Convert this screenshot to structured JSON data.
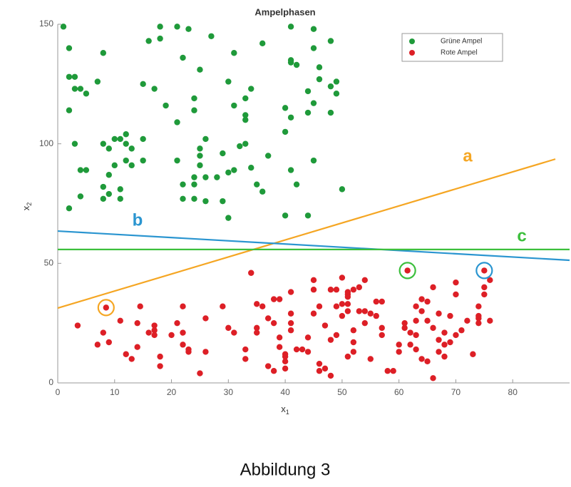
{
  "chart_data": {
    "type": "scatter",
    "title": "Ampelphasen",
    "xlabel": "x",
    "xlabel_sub": "1",
    "ylabel": "x",
    "ylabel_sub": "2",
    "xlim": [
      0,
      90
    ],
    "ylim": [
      0,
      150
    ],
    "xticks": [
      0,
      10,
      20,
      30,
      40,
      50,
      60,
      70,
      80
    ],
    "yticks": [
      0,
      50,
      100,
      150
    ],
    "legend": "upper right",
    "series": [
      {
        "name": "Grüne Ampel",
        "color": "#1f9a3a",
        "x": [
          1,
          2,
          2,
          3,
          2,
          3,
          4,
          5,
          3,
          4,
          5,
          2,
          4,
          7,
          8,
          8,
          9,
          8,
          9,
          8,
          9,
          10,
          11,
          12,
          12,
          13,
          12,
          10,
          11,
          11,
          13,
          15,
          15,
          15,
          17,
          16,
          18,
          18,
          21,
          23,
          22,
          25,
          19,
          21,
          21,
          22,
          22,
          24,
          24,
          24,
          24,
          24,
          25,
          25,
          25,
          26,
          26,
          26,
          27,
          28,
          29,
          29,
          30,
          30,
          30,
          31,
          31,
          31,
          32,
          33,
          33,
          33,
          34,
          33,
          34,
          35,
          36,
          36,
          37,
          40,
          40,
          40,
          41,
          41,
          41,
          41,
          41,
          42,
          42,
          44,
          44,
          44,
          45,
          45,
          45,
          45,
          46,
          46,
          48,
          48,
          48,
          49,
          49,
          50
        ],
        "y": [
          149,
          140,
          128,
          128,
          114,
          123,
          123,
          121,
          100,
          89,
          89,
          73,
          78,
          126,
          138,
          82,
          87,
          77,
          79,
          100,
          98,
          102,
          102,
          104,
          100,
          98,
          93,
          91,
          81,
          77,
          91,
          93,
          102,
          125,
          123,
          143,
          144,
          149,
          149,
          148,
          136,
          131,
          116,
          109,
          93,
          83,
          77,
          83,
          77,
          86,
          119,
          114,
          98,
          95,
          91,
          102,
          86,
          76,
          145,
          86,
          76,
          96,
          88,
          69,
          126,
          116,
          89,
          138,
          99,
          119,
          112,
          110,
          123,
          100,
          90,
          83,
          80,
          142,
          95,
          115,
          105,
          70,
          149,
          135,
          134,
          111,
          89,
          83,
          133,
          122,
          113,
          70,
          148,
          140,
          117,
          93,
          127,
          132,
          143,
          113,
          124,
          126,
          121,
          81
        ]
      },
      {
        "name": "Rote Ampel",
        "color": "#dd1f26",
        "x": [
          3.5,
          7,
          8.5,
          8,
          9,
          11,
          12,
          13,
          14,
          14,
          14.5,
          16,
          17,
          17,
          17,
          18,
          18,
          20,
          21,
          22,
          22,
          22,
          23,
          23,
          25,
          26,
          26,
          29,
          30,
          31,
          33,
          33,
          34,
          35,
          35,
          35,
          36,
          37,
          37,
          38,
          38,
          39,
          38,
          39,
          39,
          40,
          40,
          40,
          40,
          41,
          41,
          41,
          41,
          42,
          43,
          44,
          44,
          45,
          45,
          45,
          46,
          46,
          46,
          47,
          47,
          48,
          48,
          48,
          49,
          49,
          49,
          50,
          50,
          50,
          51,
          51,
          51,
          51,
          51,
          51,
          52,
          52,
          52,
          52,
          53,
          53,
          54,
          54,
          54,
          55,
          55,
          56,
          56,
          57,
          57,
          57,
          58,
          59,
          60,
          60,
          61,
          61,
          61.5,
          62,
          62,
          63,
          63,
          63,
          63,
          64,
          64,
          64,
          65,
          65,
          65,
          66,
          66,
          66,
          67,
          67,
          67,
          68,
          68,
          68,
          69,
          69,
          70,
          70,
          70,
          71,
          72,
          73,
          74,
          74,
          74,
          74,
          75,
          75,
          75,
          76,
          76
        ],
        "y": [
          24,
          16,
          31.5,
          21,
          17,
          26,
          12,
          10,
          15,
          25,
          32,
          21,
          22,
          24,
          20,
          7,
          11,
          20,
          25,
          16,
          21,
          32,
          14,
          13,
          4,
          27,
          13,
          32,
          23,
          21,
          10,
          14,
          46,
          33,
          23,
          21,
          32,
          27,
          7,
          5,
          35,
          35,
          25,
          19,
          15,
          11,
          12,
          9,
          6,
          22,
          25,
          29,
          38,
          14,
          14,
          19,
          13,
          29,
          39,
          43,
          32,
          8,
          5,
          6,
          24,
          39,
          3,
          18,
          39,
          32,
          20,
          33,
          28,
          44,
          37,
          38,
          36,
          33,
          30,
          11,
          22,
          39,
          17,
          13,
          40,
          30,
          30,
          25,
          43,
          29,
          10,
          34,
          28,
          23,
          20,
          34,
          5,
          5,
          16,
          13,
          23,
          25,
          47,
          21,
          16,
          32,
          26,
          20,
          14,
          35,
          30,
          10,
          26,
          34,
          9,
          40,
          2,
          23,
          18,
          13,
          29,
          21,
          16,
          11,
          28,
          17,
          37,
          42,
          20,
          22,
          26,
          12,
          32,
          28,
          27,
          25,
          47,
          37,
          40,
          43,
          26
        ]
      }
    ],
    "lines": [
      {
        "label": "a",
        "color": "#f5a623",
        "x": [
          0,
          87.5
        ],
        "y": [
          31.3,
          93.6
        ]
      },
      {
        "label": "b",
        "color": "#2a95d0",
        "x": [
          0,
          90
        ],
        "y": [
          63.5,
          51.3
        ]
      },
      {
        "label": "c",
        "color": "#3cbf3c",
        "x": [
          0,
          90
        ],
        "y": [
          55.8,
          55.8
        ]
      }
    ],
    "highlights": [
      {
        "x": 8.5,
        "y": 31.5,
        "color": "#f5a623"
      },
      {
        "x": 61.5,
        "y": 47,
        "color": "#3cbf3c"
      },
      {
        "x": 75,
        "y": 47,
        "color": "#2a95d0"
      }
    ],
    "caption": "Abbildung 3"
  }
}
